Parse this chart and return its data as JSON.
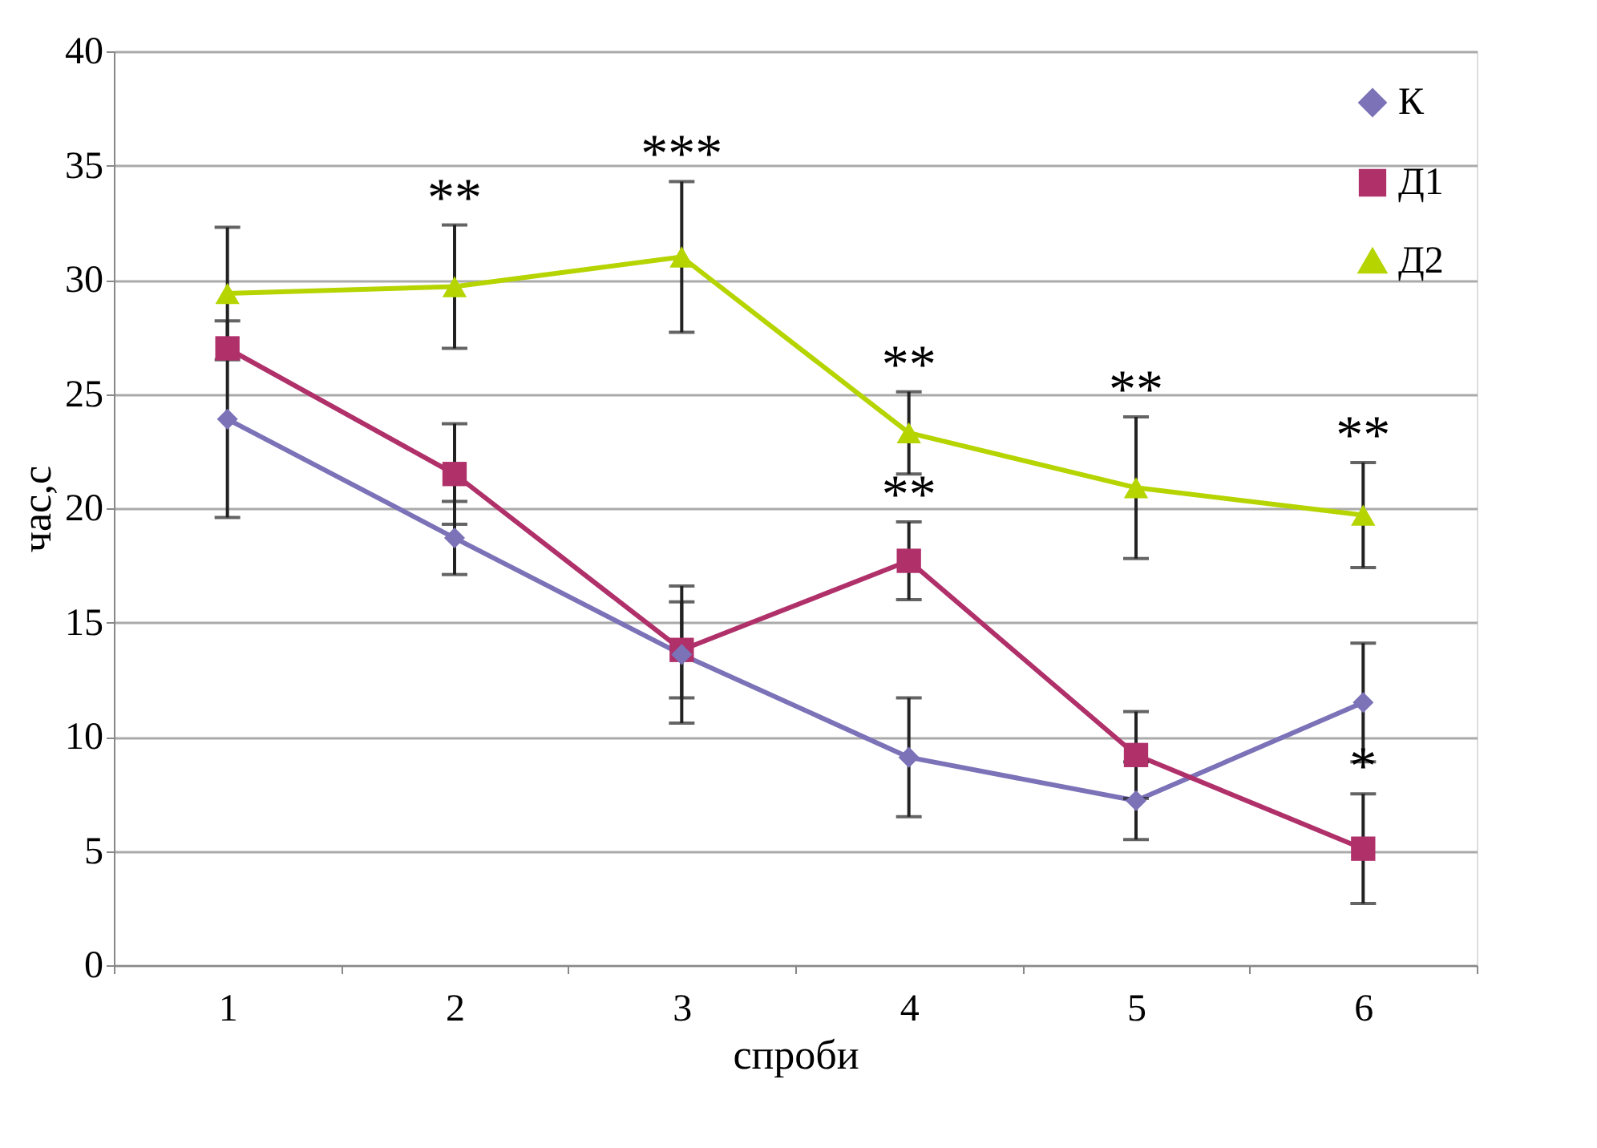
{
  "chart_data": {
    "type": "line",
    "xlabel": "спроби",
    "ylabel": "час,с",
    "categories": [
      "1",
      "2",
      "3",
      "4",
      "5",
      "6"
    ],
    "ylim": [
      0,
      40
    ],
    "yticks": [
      0,
      5,
      10,
      15,
      20,
      25,
      30,
      35,
      40
    ],
    "grid": "y",
    "legend": "top right",
    "line_style": "solid",
    "series": [
      {
        "name": "К",
        "color": "#7b72b8",
        "marker": "diamond",
        "values": [
          23.9,
          18.7,
          13.6,
          9.1,
          7.2,
          11.5
        ],
        "errors": [
          4.3,
          1.6,
          3.0,
          2.6,
          1.7,
          2.6
        ]
      },
      {
        "name": "Д1",
        "color": "#b0306a",
        "marker": "square",
        "values": [
          27.0,
          21.5,
          13.8,
          17.7,
          9.2,
          5.1
        ],
        "errors": [
          null,
          2.2,
          2.1,
          1.7,
          1.9,
          2.4
        ]
      },
      {
        "name": "Д2",
        "color": "#b5d400",
        "marker": "triangle",
        "values": [
          29.4,
          29.7,
          31.0,
          23.3,
          20.9,
          19.7
        ],
        "errors": [
          2.9,
          2.7,
          3.3,
          1.8,
          3.1,
          2.3
        ]
      }
    ],
    "annotations": [
      {
        "text": "**",
        "x": "2",
        "y": 29.7
      },
      {
        "text": "***",
        "x": "3",
        "y": 31.0
      },
      {
        "text": "**",
        "x": "4",
        "y": 23.3
      },
      {
        "text": "**",
        "x": "4",
        "y": 17.7
      },
      {
        "text": "**",
        "x": "5",
        "y": 20.9
      },
      {
        "text": "**",
        "x": "6",
        "y": 19.7
      },
      {
        "text": "*",
        "x": "6",
        "y": 5.1
      }
    ]
  }
}
